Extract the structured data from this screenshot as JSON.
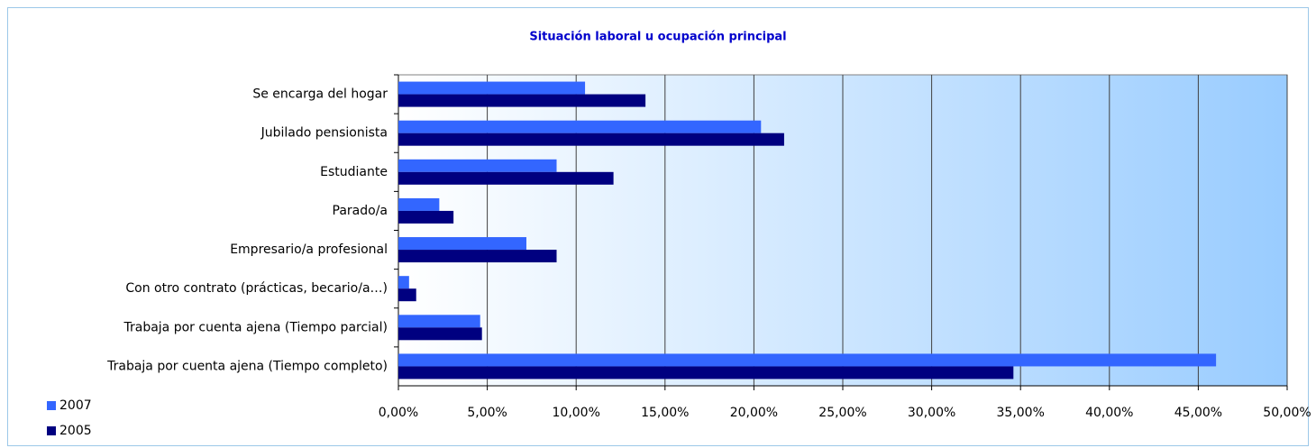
{
  "chart_data": {
    "type": "barh",
    "title": "Situación laboral u ocupación principal",
    "categories": [
      "Se encarga del hogar",
      "Jubilado   pensionista",
      "Estudiante",
      "Parado/a",
      "Empresario/a profesional",
      "Con otro contrato (prácticas, becario/a…)",
      "Trabaja por cuenta ajena  (Tiempo parcial)",
      "Trabaja por cuenta ajena (Tiempo completo)"
    ],
    "series": [
      {
        "name": "2007",
        "color": "#3366ff",
        "values": [
          10.5,
          20.4,
          8.9,
          2.3,
          7.2,
          0.6,
          4.6,
          46.0
        ]
      },
      {
        "name": "2005",
        "color": "#000080",
        "values": [
          13.9,
          21.7,
          12.1,
          3.1,
          8.9,
          1.0,
          4.7,
          34.6
        ]
      }
    ],
    "xlim": [
      0,
      50
    ],
    "xticks": [
      {
        "value": 0,
        "label": "0,00%"
      },
      {
        "value": 5,
        "label": "5,00%"
      },
      {
        "value": 10,
        "label": "10,00%"
      },
      {
        "value": 15,
        "label": "15,00%"
      },
      {
        "value": 20,
        "label": "20,00%"
      },
      {
        "value": 25,
        "label": "25,00%"
      },
      {
        "value": 30,
        "label": "30,00%"
      },
      {
        "value": 35,
        "label": "35,00%"
      },
      {
        "value": 40,
        "label": "40,00%"
      },
      {
        "value": 45,
        "label": "45,00%"
      },
      {
        "value": 50,
        "label": "50,00%"
      }
    ],
    "grid": true,
    "legend": "bottom-left"
  }
}
